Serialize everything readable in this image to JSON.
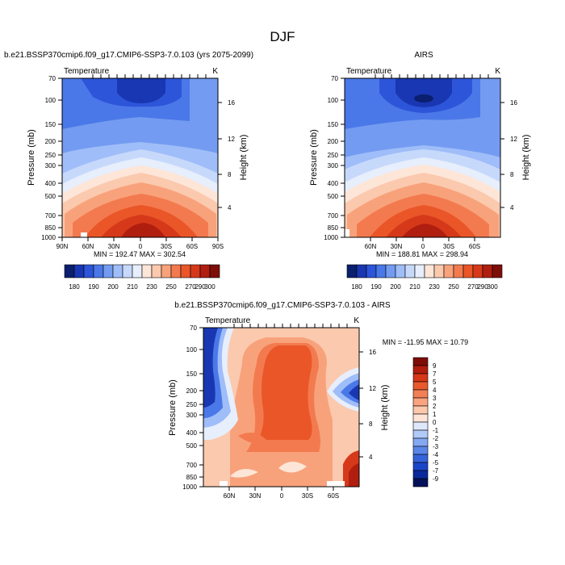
{
  "figure": {
    "title": "DJF"
  },
  "colors": {
    "abs": [
      "#0a1f6e",
      "#1937b2",
      "#2d55d9",
      "#4a78e8",
      "#739bf1",
      "#9fbdf8",
      "#c7d9fb",
      "#e7eefc",
      "#fde6d8",
      "#fbc9ae",
      "#f8a27b",
      "#f37a4f",
      "#ea5628",
      "#d6391a",
      "#b01e10",
      "#7d0f08"
    ],
    "diff": [
      "#05125a",
      "#0a2a9c",
      "#1b45c9",
      "#3563d9",
      "#5a86e8",
      "#85a8f2",
      "#b1caf8",
      "#dfe8fb",
      "#fde4d6",
      "#fbc8ac",
      "#f8a47e",
      "#f27f55",
      "#e85a2e",
      "#d63717",
      "#b01c0d",
      "#7e0c07"
    ]
  },
  "chart_data": [
    {
      "type": "heatmap",
      "panel": "model",
      "title": "b.e21.BSSP370cmip6.f09_g17.CMIP6-SSP3-7.0.103 (yrs 2075-2099)",
      "left_label": "Temperature",
      "right_label": "K",
      "ylabel": "Pressure (mb)",
      "ylabel_right": "Height (km)",
      "x_ticks": [
        "90N",
        "60N",
        "30N",
        "0",
        "30S",
        "60S",
        "90S"
      ],
      "y_ticks": [
        "70",
        "100",
        "150",
        "200",
        "250",
        "300",
        "400",
        "500",
        "700",
        "850",
        "1000"
      ],
      "height_ticks": [
        "16",
        "12",
        "8",
        "4"
      ],
      "stats": "MIN = 192.47  MAX = 302.54",
      "min": 192.47,
      "max": 302.54,
      "colorbar_labels": [
        "180",
        "190",
        "200",
        "210",
        "230",
        "250",
        "270",
        "290",
        "300"
      ],
      "levels": [
        180,
        190,
        200,
        210,
        220,
        230,
        240,
        250,
        260,
        270,
        280,
        290,
        295,
        300
      ]
    },
    {
      "type": "heatmap",
      "panel": "obs",
      "title": "AIRS",
      "left_label": "Temperature",
      "right_label": "K",
      "ylabel": "Pressure (mb)",
      "ylabel_right": "Height (km)",
      "x_ticks": [
        "60N",
        "30N",
        "0",
        "30S",
        "60S"
      ],
      "y_ticks": [
        "70",
        "100",
        "150",
        "200",
        "250",
        "300",
        "400",
        "500",
        "700",
        "850",
        "1000"
      ],
      "height_ticks": [
        "16",
        "12",
        "8",
        "4"
      ],
      "stats": "MIN = 188.81  MAX = 298.94",
      "min": 188.81,
      "max": 298.94,
      "colorbar_labels": [
        "180",
        "190",
        "200",
        "210",
        "230",
        "250",
        "270",
        "290",
        "300"
      ],
      "levels": [
        180,
        190,
        200,
        210,
        220,
        230,
        240,
        250,
        260,
        270,
        280,
        290,
        295,
        300
      ]
    },
    {
      "type": "heatmap",
      "panel": "difference",
      "title": "b.e21.BSSP370cmip6.f09_g17.CMIP6-SSP3-7.0.103 - AIRS",
      "left_label": "Temperature",
      "right_label": "K",
      "ylabel": "Pressure (mb)",
      "ylabel_right": "Height (km)",
      "x_ticks": [
        "60N",
        "30N",
        "0",
        "30S",
        "60S"
      ],
      "y_ticks": [
        "70",
        "100",
        "150",
        "200",
        "250",
        "300",
        "400",
        "500",
        "700",
        "850",
        "1000"
      ],
      "height_ticks": [
        "16",
        "12",
        "8",
        "4"
      ],
      "stats": "MIN = -11.95  MAX =  10.79",
      "min": -11.95,
      "max": 10.79,
      "colorbar_labels": [
        "9",
        "7",
        "5",
        "4",
        "3",
        "2",
        "1",
        "0",
        "-1",
        "-2",
        "-3",
        "-4",
        "-5",
        "-7",
        "-9"
      ],
      "levels": [
        -9,
        -7,
        -5,
        -4,
        -3,
        -2,
        -1,
        0,
        1,
        2,
        3,
        4,
        5,
        7,
        9
      ]
    }
  ]
}
